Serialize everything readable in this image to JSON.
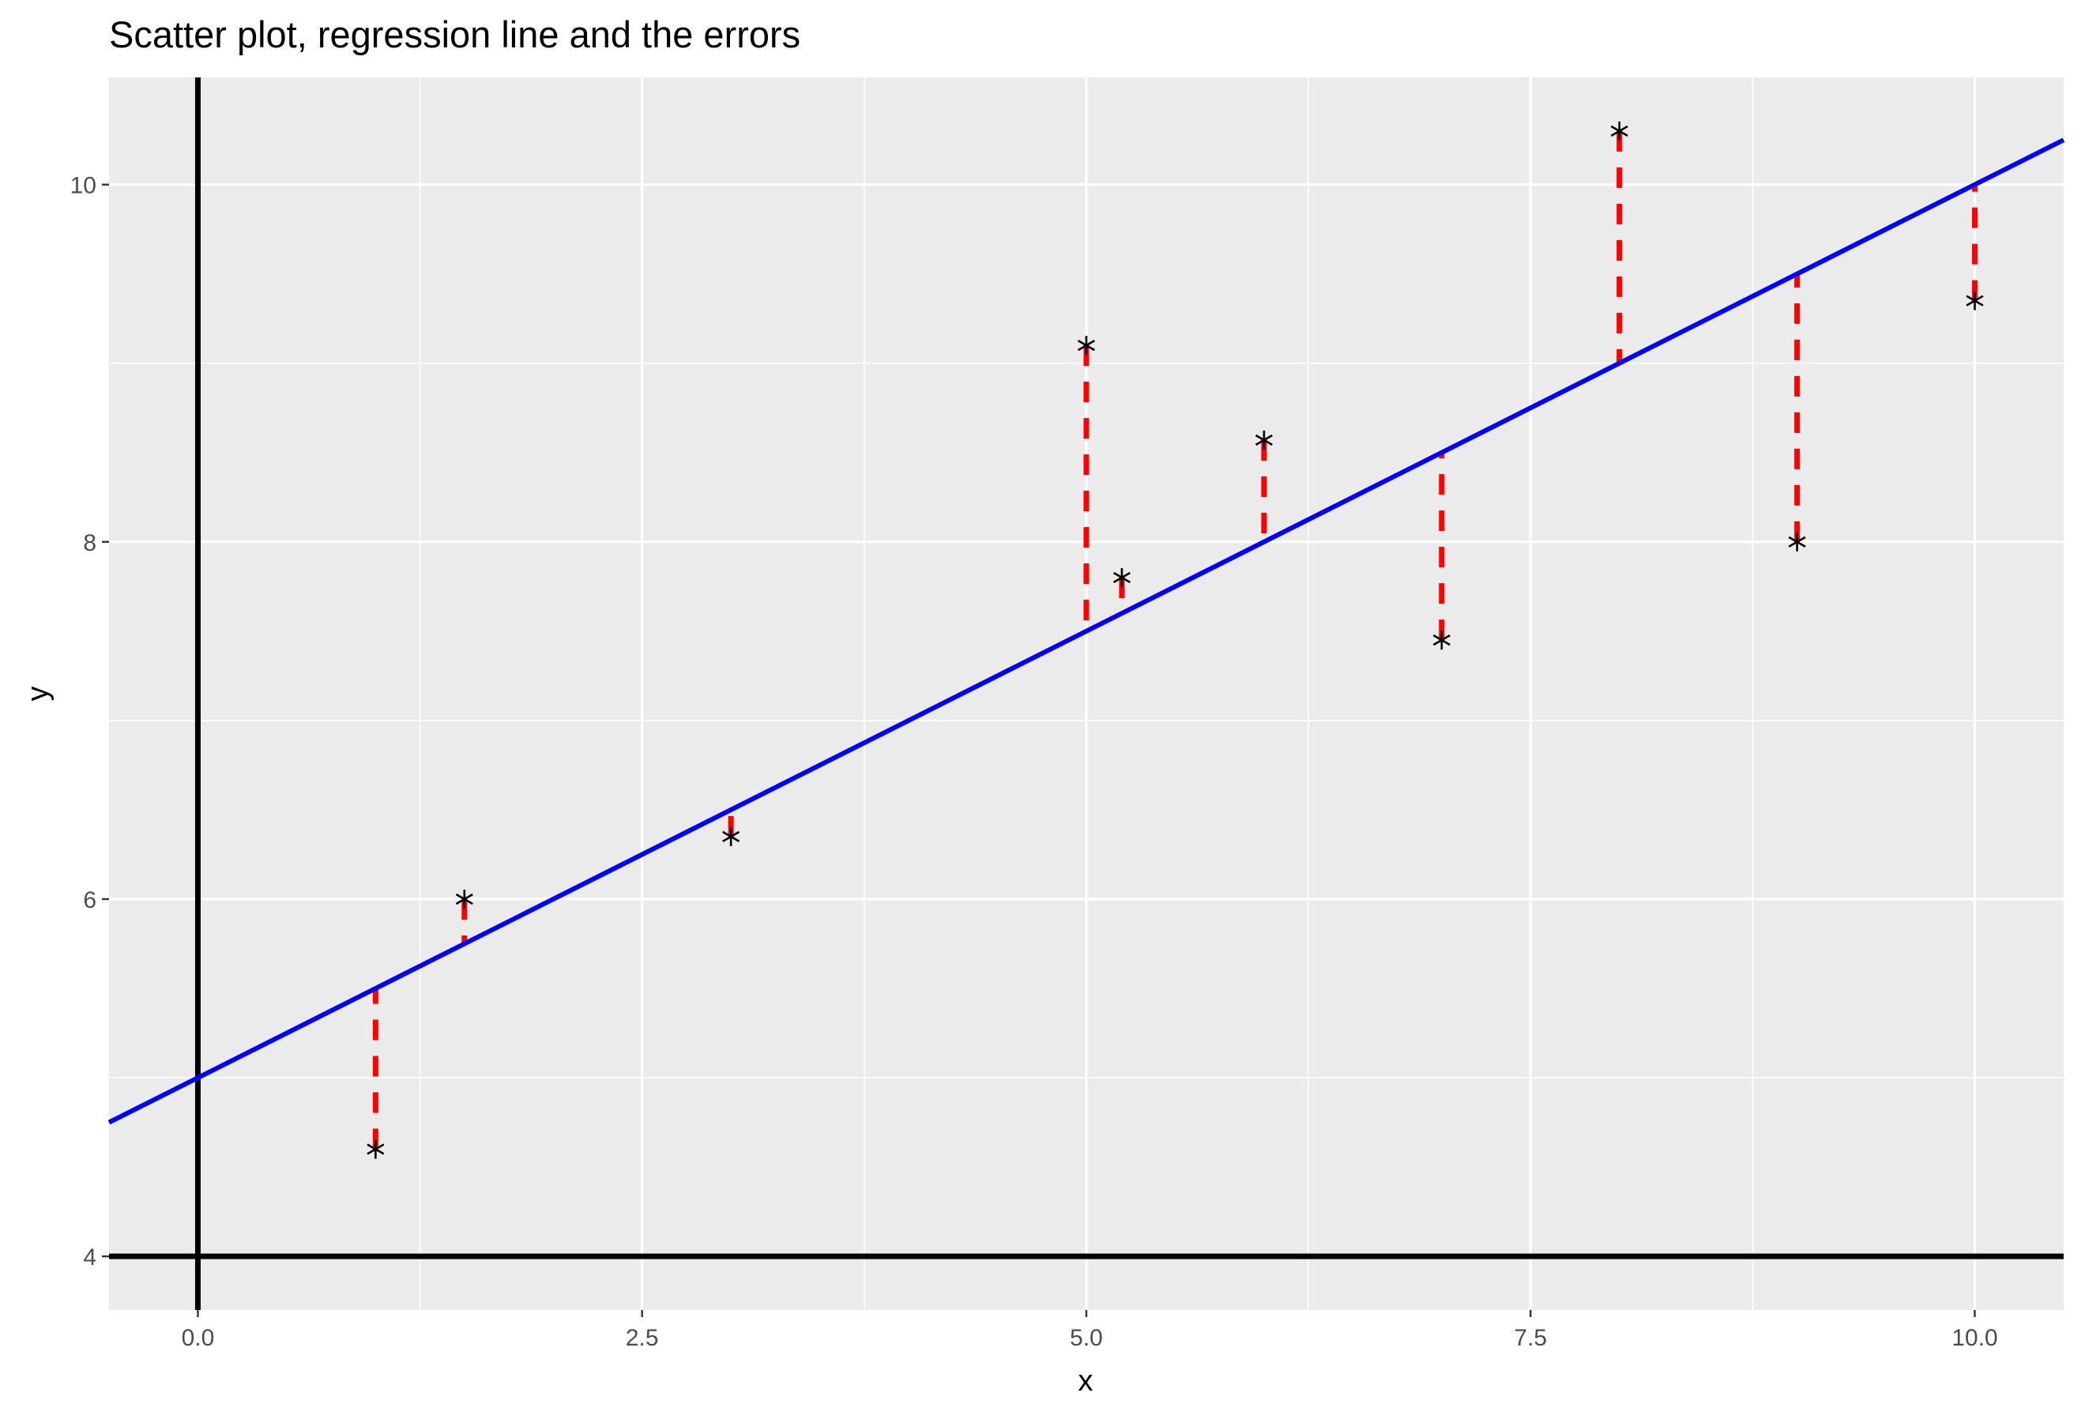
{
  "chart_data": {
    "type": "scatter",
    "title": "Scatter plot, regression line and the errors",
    "xlabel": "x",
    "ylabel": "y",
    "xlim": [
      -0.5,
      10.5
    ],
    "ylim": [
      3.7,
      10.6
    ],
    "x_ticks": [
      0,
      2.5,
      5,
      7.5,
      10
    ],
    "x_tick_labels": [
      "0.0",
      "2.5",
      "5.0",
      "7.5",
      "10.0"
    ],
    "y_ticks": [
      4,
      6,
      8,
      10
    ],
    "y_tick_labels": [
      "4",
      "6",
      "8",
      "10"
    ],
    "x_minor_ticks": [
      1.25,
      3.75,
      6.25,
      8.75
    ],
    "y_minor_ticks": [
      5,
      7,
      9
    ],
    "grid": true,
    "points": [
      {
        "x": 1.0,
        "y": 4.6
      },
      {
        "x": 1.5,
        "y": 6.0
      },
      {
        "x": 3.0,
        "y": 6.35
      },
      {
        "x": 5.0,
        "y": 9.1
      },
      {
        "x": 5.2,
        "y": 7.8
      },
      {
        "x": 6.0,
        "y": 8.57
      },
      {
        "x": 7.0,
        "y": 7.45
      },
      {
        "x": 8.0,
        "y": 10.3
      },
      {
        "x": 9.0,
        "y": 8.0
      },
      {
        "x": 10.0,
        "y": 9.35
      }
    ],
    "regression_line": {
      "intercept": 5.0,
      "slope": 0.5
    },
    "reference_lines": {
      "vertical_x": 0,
      "horizontal_y": 4
    },
    "colors": {
      "panel_background": "#ebebeb",
      "grid": "#ffffff",
      "points": "#000000",
      "regression_line": "#0000ff",
      "errors": "#ff0000",
      "reference_lines": "#000000",
      "tick_text": "#4d4d4d",
      "tick_marks": "#333333"
    },
    "point_marker": "asterisk",
    "error_line_style": "dashed"
  }
}
